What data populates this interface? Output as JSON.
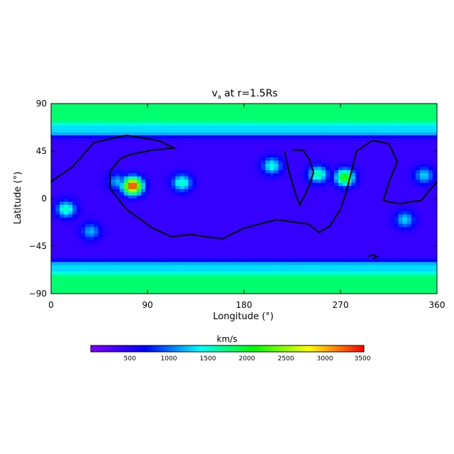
{
  "chart_data": {
    "type": "heatmap",
    "title": "v",
    "title_subscript": "a",
    "title_rest": " at r=1.5Rs",
    "xlabel": "Longitude (°)",
    "ylabel": "Latitude (°)",
    "xlim": [
      0,
      360
    ],
    "ylim": [
      -90,
      90
    ],
    "x_ticks": [
      "0",
      "90",
      "180",
      "270",
      "360"
    ],
    "y_ticks": [
      "90",
      "45",
      "0",
      "−45",
      "−90"
    ],
    "colorbar": {
      "label": "km/s",
      "range": [
        0,
        3500
      ],
      "ticks": [
        "500",
        "1000",
        "1500",
        "2000",
        "2500",
        "3000",
        "3500"
      ],
      "colors": [
        "#7f00ff",
        "#0000ff",
        "#00ffff",
        "#00ff00",
        "#ffff00",
        "#ff0000"
      ]
    },
    "background_speed": 400,
    "polar_speed": 1800,
    "features": [
      {
        "lon": 76,
        "lat": 12,
        "speed": 3500
      },
      {
        "lon": 122,
        "lat": 15,
        "speed": 1600
      },
      {
        "lon": 274,
        "lat": 20,
        "speed": 2200
      },
      {
        "lon": 249,
        "lat": 23,
        "speed": 1700
      },
      {
        "lon": 206,
        "lat": 31,
        "speed": 1500
      },
      {
        "lon": 14,
        "lat": -10,
        "speed": 1600
      },
      {
        "lon": 37,
        "lat": -31,
        "speed": 1200
      },
      {
        "lon": 330,
        "lat": -20,
        "speed": 1300
      },
      {
        "lon": 348,
        "lat": 22,
        "speed": 1300
      },
      {
        "lon": 62,
        "lat": 16,
        "speed": 1200
      }
    ],
    "boundary_lines": [
      [
        [
          0,
          16
        ],
        [
          20,
          30
        ],
        [
          40,
          53
        ],
        [
          70,
          60
        ],
        [
          100,
          55
        ],
        [
          115,
          48
        ],
        [
          95,
          46
        ],
        [
          75,
          42
        ],
        [
          65,
          38
        ],
        [
          55,
          26
        ],
        [
          55,
          10
        ],
        [
          70,
          -10
        ],
        [
          95,
          -28
        ],
        [
          112,
          -36
        ],
        [
          130,
          -34
        ],
        [
          160,
          -38
        ],
        [
          180,
          -28
        ],
        [
          210,
          -20
        ],
        [
          240,
          -24
        ],
        [
          250,
          -32
        ],
        [
          260,
          -26
        ],
        [
          270,
          -10
        ],
        [
          275,
          5
        ],
        [
          280,
          25
        ],
        [
          285,
          45
        ],
        [
          300,
          55
        ],
        [
          315,
          52
        ],
        [
          323,
          35
        ],
        [
          315,
          15
        ],
        [
          310,
          -2
        ],
        [
          325,
          -5
        ],
        [
          335,
          -3
        ],
        [
          345,
          -2
        ],
        [
          360,
          16
        ]
      ],
      [
        [
          218,
          45
        ],
        [
          222,
          25
        ],
        [
          228,
          5
        ],
        [
          232,
          -6
        ],
        [
          240,
          10
        ],
        [
          245,
          25
        ],
        [
          241,
          37
        ],
        [
          235,
          46
        ],
        [
          225,
          46
        ]
      ],
      [
        [
          296,
          -55
        ],
        [
          300,
          -53
        ],
        [
          304,
          -55
        ],
        [
          300,
          -57
        ]
      ]
    ]
  }
}
